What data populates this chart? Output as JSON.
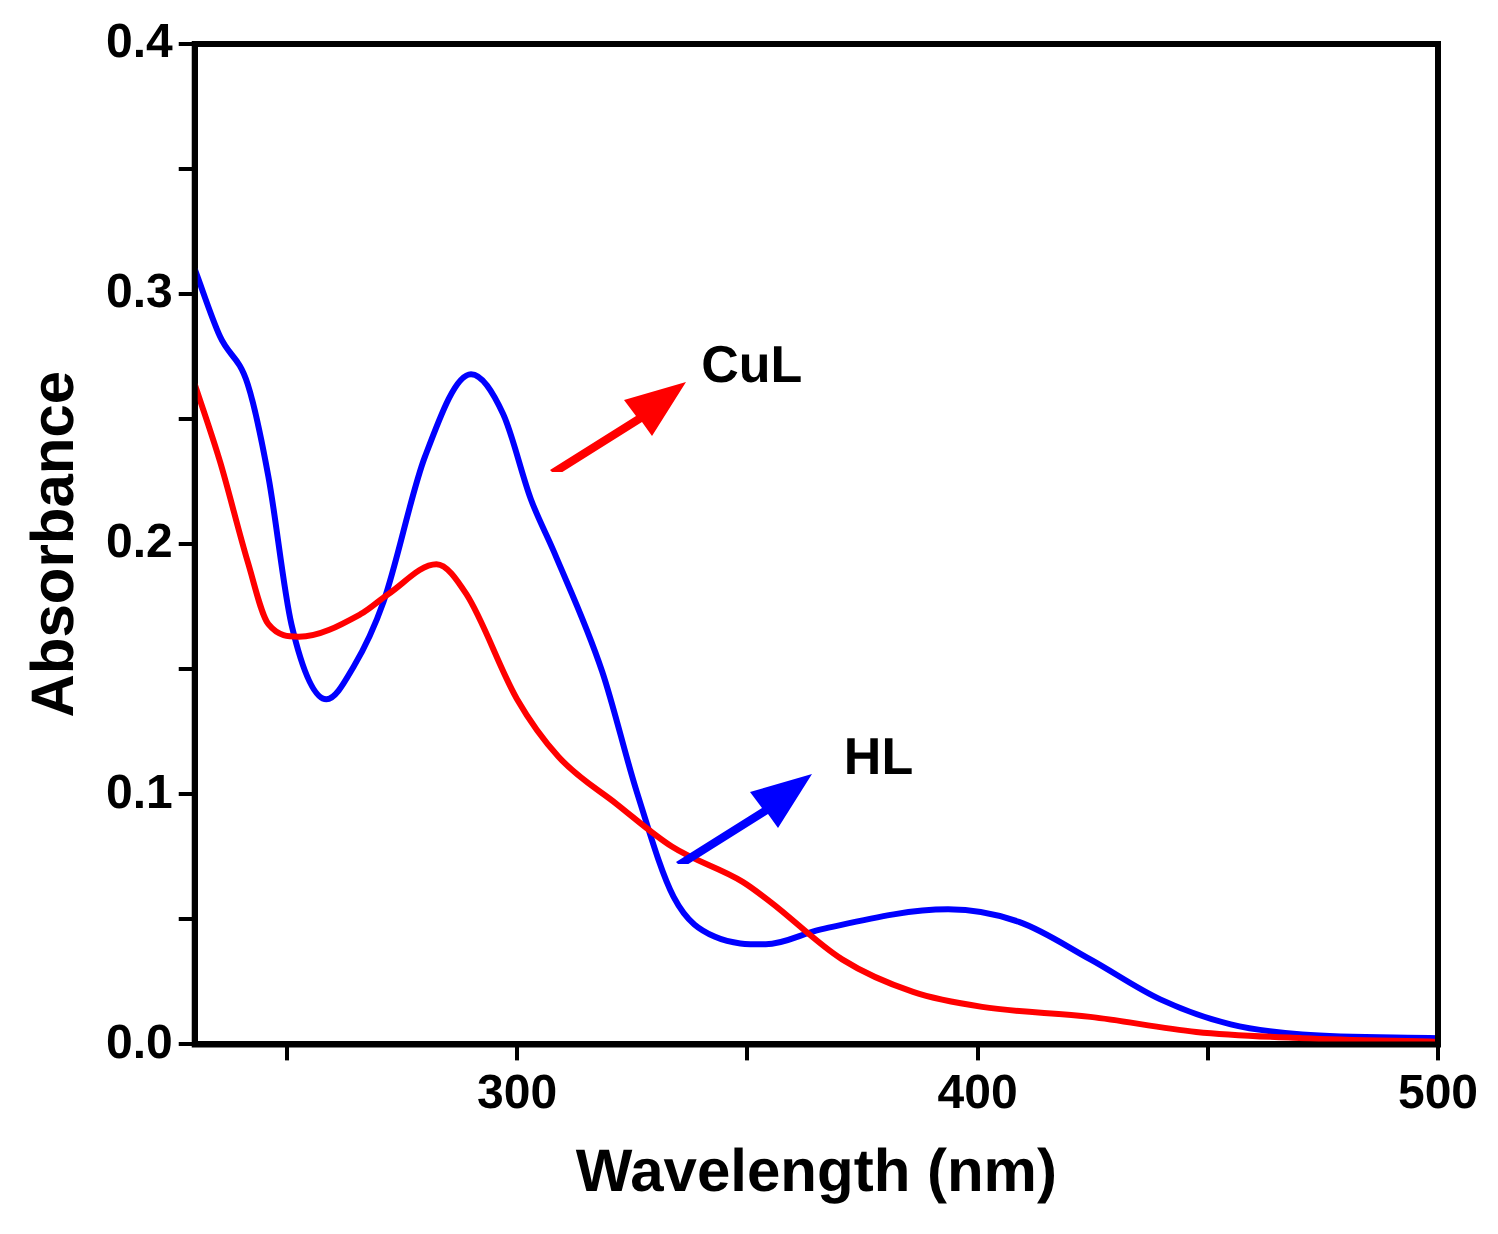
{
  "chart_data": {
    "type": "line",
    "xlabel": "Wavelength (nm)",
    "ylabel": "Absorbance",
    "xlim": [
      230,
      500
    ],
    "xticks": [
      {
        "value": 250,
        "label": null
      },
      300,
      {
        "value": 350,
        "label": null
      },
      400,
      {
        "value": 450,
        "label": null
      },
      500
    ],
    "ylim": [
      0,
      0.4
    ],
    "yticks": [
      {
        "value": 0,
        "label": "0.0"
      },
      {
        "value": 0.05,
        "label": null
      },
      {
        "value": 0.1,
        "label": "0.1"
      },
      {
        "value": 0.15,
        "label": null
      },
      {
        "value": 0.2,
        "label": "0.2"
      },
      {
        "value": 0.25,
        "label": null
      },
      {
        "value": 0.3,
        "label": "0.3"
      },
      {
        "value": 0.35,
        "label": null
      },
      {
        "value": 0.4,
        "label": "0.4"
      }
    ],
    "marker": "none",
    "series": [
      {
        "color": "#ff0000",
        "x": [
          230,
          235.5,
          241.5,
          246,
          252.6,
          266,
          272,
          282.5,
          289,
          300,
          309,
          321.7,
          333.7,
          349,
          355,
          370.6,
          386,
          401,
          424.5,
          447.5,
          470.5,
          500
        ],
        "values": [
          0.264,
          0.233,
          0.193,
          0.168,
          0.163,
          0.172,
          0.18,
          0.192,
          0.18,
          0.138,
          0.115,
          0.096,
          0.079,
          0.065,
          0.057,
          0.034,
          0.021,
          0.015,
          0.011,
          0.005,
          0.0025,
          0.001
        ]
      },
      {
        "color": "#0000ff",
        "x": [
          230,
          235.5,
          241.5,
          246,
          251,
          258.6,
          264.5,
          271,
          280,
          290,
          297,
          303,
          308,
          318.5,
          326,
          334,
          343,
          354,
          366,
          393.6,
          409,
          424.5,
          439.7,
          455,
          470.5,
          500
        ],
        "values": [
          0.31,
          0.283,
          0.264,
          0.227,
          0.168,
          0.138,
          0.151,
          0.177,
          0.235,
          0.268,
          0.252,
          0.218,
          0.197,
          0.149,
          0.101,
          0.059,
          0.043,
          0.04,
          0.046,
          0.054,
          0.049,
          0.034,
          0.018,
          0.008,
          0.004,
          0.0025
        ]
      }
    ],
    "annotations": [
      "CuL",
      "HL"
    ]
  }
}
